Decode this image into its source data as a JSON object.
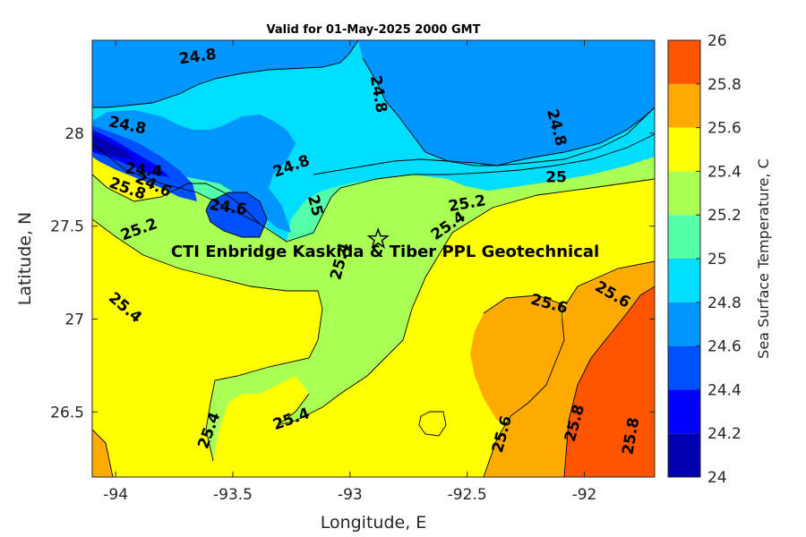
{
  "title": "Valid for 01-May-2025 2000 GMT",
  "colors": {
    "bands": [
      "#0000b0",
      "#0000ff",
      "#0050ff",
      "#0096ff",
      "#00ddff",
      "#55ffaa",
      "#aaff55",
      "#ffff00",
      "#ffaa00",
      "#ff5500"
    ],
    "marker": "#000000"
  },
  "chart_data": {
    "type": "heatmap",
    "subtype": "filled-contour",
    "title": "Valid for 01-May-2025 2000 GMT",
    "xlabel": "Longitude, E",
    "ylabel": "Latitude, N",
    "xlim": [
      -94.1,
      -91.7
    ],
    "ylim": [
      26.15,
      28.5
    ],
    "xticks": [
      -94,
      -93.5,
      -93,
      -92.5,
      -92
    ],
    "xtick_labels": [
      "-94",
      "-93.5",
      "-93",
      "-92.5",
      "-92"
    ],
    "yticks": [
      26.5,
      27,
      27.5,
      28
    ],
    "ytick_labels": [
      "26.5",
      "27",
      "27.5",
      "28"
    ],
    "colorbar": {
      "label": "Sea Surface Temperature, C",
      "range": [
        24,
        26
      ],
      "ticks": [
        24,
        24.2,
        24.4,
        24.6,
        24.8,
        25,
        25.2,
        25.4,
        25.6,
        25.8,
        26
      ],
      "tick_labels": [
        "24",
        "24.2",
        "24.4",
        "24.6",
        "24.8",
        "25",
        "25.2",
        "25.4",
        "25.6",
        "25.8",
        "26"
      ]
    },
    "contour_labels": [
      {
        "text": "24.8",
        "lon": -93.65,
        "lat": 28.41,
        "rot": -8
      },
      {
        "text": "24.8",
        "lon": -92.88,
        "lat": 28.21,
        "rot": 80
      },
      {
        "text": "24.8",
        "lon": -92.12,
        "lat": 28.03,
        "rot": 75
      },
      {
        "text": "24.8",
        "lon": -93.95,
        "lat": 28.04,
        "rot": 12
      },
      {
        "text": "24.8",
        "lon": -93.25,
        "lat": 27.82,
        "rot": -20
      },
      {
        "text": "24.4",
        "lon": -93.88,
        "lat": 27.8,
        "rot": 5
      },
      {
        "text": "24.6",
        "lon": -93.84,
        "lat": 27.72,
        "rot": 25
      },
      {
        "text": "25.8",
        "lon": -93.95,
        "lat": 27.7,
        "rot": 20
      },
      {
        "text": "24.6",
        "lon": -93.52,
        "lat": 27.6,
        "rot": 8
      },
      {
        "text": "25",
        "lon": -93.15,
        "lat": 27.61,
        "rot": 75
      },
      {
        "text": "25.2",
        "lon": -93.9,
        "lat": 27.48,
        "rot": -20
      },
      {
        "text": "25.2",
        "lon": -92.5,
        "lat": 27.62,
        "rot": -10
      },
      {
        "text": "25",
        "lon": -92.12,
        "lat": 27.76,
        "rot": 0
      },
      {
        "text": "25.4",
        "lon": -92.58,
        "lat": 27.5,
        "rot": -35
      },
      {
        "text": "25.4",
        "lon": -93.04,
        "lat": 27.31,
        "rot": -75
      },
      {
        "text": "25.4",
        "lon": -93.96,
        "lat": 27.06,
        "rot": 40
      },
      {
        "text": "25.6",
        "lon": -92.15,
        "lat": 27.08,
        "rot": 15
      },
      {
        "text": "25.6",
        "lon": -91.88,
        "lat": 27.13,
        "rot": 30
      },
      {
        "text": "25.4",
        "lon": -93.6,
        "lat": 26.4,
        "rot": -70
      },
      {
        "text": "25.4",
        "lon": -93.25,
        "lat": 26.46,
        "rot": -20
      },
      {
        "text": "25.6",
        "lon": -92.35,
        "lat": 26.38,
        "rot": -75
      },
      {
        "text": "25.8",
        "lon": -92.04,
        "lat": 26.44,
        "rot": -75
      },
      {
        "text": "25.8",
        "lon": -91.8,
        "lat": 26.37,
        "rot": -80
      }
    ],
    "site": {
      "name": "CTI Enbridge  Kaskida & Tiber PPL Geotechnical",
      "lon": -92.88,
      "lat": 27.43
    }
  }
}
